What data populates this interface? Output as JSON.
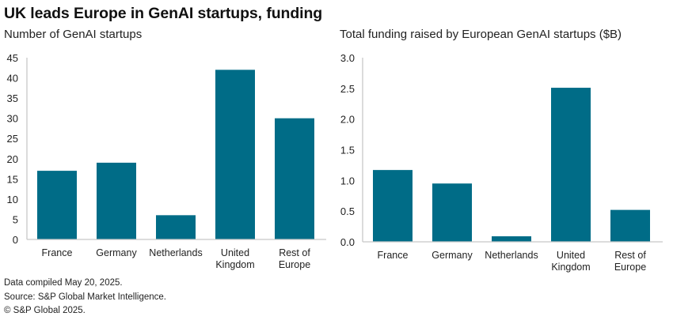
{
  "title": "UK leads Europe in GenAI startups, funding",
  "bar_color": "#006c87",
  "axis_color": "#c8c8c8",
  "chart_data": [
    {
      "type": "bar",
      "title": "Number of GenAI startups",
      "xlabel": "",
      "ylabel": "",
      "categories": [
        "France",
        "Germany",
        "Netherlands",
        "United Kingdom",
        "Rest of Europe"
      ],
      "category_lines": [
        [
          "France"
        ],
        [
          "Germany"
        ],
        [
          "Netherlands"
        ],
        [
          "United",
          "Kingdom"
        ],
        [
          "Rest of",
          "Europe"
        ]
      ],
      "values": [
        17,
        19,
        6,
        42,
        30
      ],
      "ylim": [
        0,
        45
      ],
      "yticks": [
        0,
        5,
        10,
        15,
        20,
        25,
        30,
        35,
        40,
        45
      ],
      "ytick_labels": [
        "0",
        "5",
        "10",
        "15",
        "20",
        "25",
        "30",
        "35",
        "40",
        "45"
      ],
      "grid": false,
      "legend": "none"
    },
    {
      "type": "bar",
      "title": "Total funding raised by European GenAI startups ($B)",
      "xlabel": "",
      "ylabel": "",
      "categories": [
        "France",
        "Germany",
        "Netherlands",
        "United Kingdom",
        "Rest of Europe"
      ],
      "category_lines": [
        [
          "France"
        ],
        [
          "Germany"
        ],
        [
          "Netherlands"
        ],
        [
          "United",
          "Kingdom"
        ],
        [
          "Rest of",
          "Europe"
        ]
      ],
      "values": [
        1.17,
        0.95,
        0.09,
        2.51,
        0.52
      ],
      "ylim": [
        0,
        3.0
      ],
      "yticks": [
        0,
        0.5,
        1.0,
        1.5,
        2.0,
        2.5,
        3.0
      ],
      "ytick_labels": [
        "0.0",
        "0.5",
        "1.0",
        "1.5",
        "2.0",
        "2.5",
        "3.0"
      ],
      "grid": false,
      "legend": "none"
    }
  ],
  "footer": {
    "line1": "Data compiled May 20, 2025.",
    "line2": "Source: S&P Global Market Intelligence.",
    "line3": "© S&P Global 2025."
  }
}
